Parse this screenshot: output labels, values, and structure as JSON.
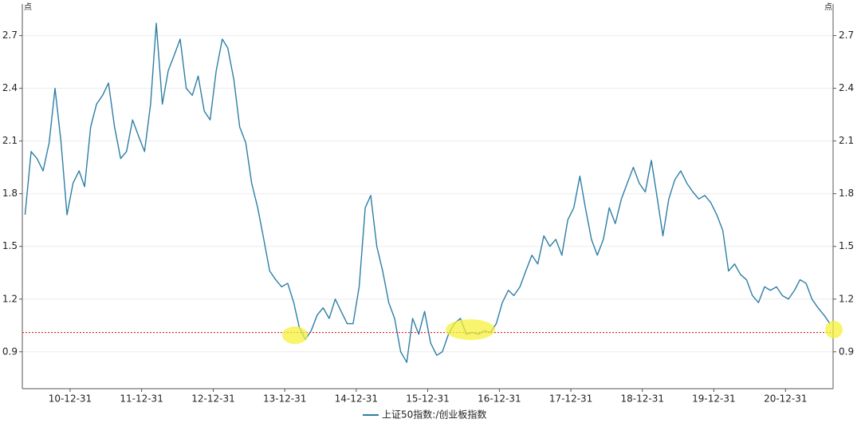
{
  "chart_data": {
    "type": "line",
    "ylabel": "点",
    "y2label": "点",
    "x": [
      "10-05-15",
      "10-06-15",
      "10-07-15",
      "10-08-15",
      "10-09-15",
      "10-10-15",
      "10-11-15",
      "10-12-15",
      "11-01-15",
      "11-02-15",
      "11-03-15",
      "11-04-15",
      "11-05-15",
      "11-06-15",
      "11-07-15",
      "11-08-15",
      "11-09-15",
      "11-10-15",
      "11-11-15",
      "11-12-15",
      "12-01-15",
      "12-02-15",
      "12-03-15",
      "12-04-15",
      "12-05-15",
      "12-06-15",
      "12-07-15",
      "12-08-15",
      "12-09-15",
      "12-10-15",
      "12-11-15",
      "12-12-15",
      "13-01-15",
      "13-02-15",
      "13-03-15",
      "13-04-15",
      "13-05-15",
      "13-06-15",
      "13-07-15",
      "13-08-15",
      "13-09-15",
      "13-10-15",
      "13-11-15",
      "13-12-15",
      "14-01-15",
      "14-02-15",
      "14-03-15",
      "14-04-15",
      "14-05-15",
      "14-06-15",
      "14-07-15",
      "14-08-15",
      "14-09-15",
      "14-10-15",
      "14-11-15",
      "14-12-15",
      "15-01-15",
      "15-02-15",
      "15-03-15",
      "15-04-15",
      "15-05-15",
      "15-06-15",
      "15-07-15",
      "15-08-15",
      "15-09-15",
      "15-10-15",
      "15-11-15",
      "15-12-15",
      "16-01-15",
      "16-02-15",
      "16-03-15",
      "16-04-15",
      "16-05-15",
      "16-06-15",
      "16-07-15",
      "16-08-15",
      "16-09-15",
      "16-10-15",
      "16-11-15",
      "16-12-15",
      "17-01-15",
      "17-02-15",
      "17-03-15",
      "17-04-15",
      "17-05-15",
      "17-06-15",
      "17-07-15",
      "17-08-15",
      "17-09-15",
      "17-10-15",
      "17-11-15",
      "17-12-15",
      "18-01-15",
      "18-02-15",
      "18-03-15",
      "18-04-15",
      "18-05-15",
      "18-06-15",
      "18-07-15",
      "18-08-15",
      "18-09-15",
      "18-10-15",
      "18-11-15",
      "18-12-15",
      "19-01-15",
      "19-02-15",
      "19-03-15",
      "19-04-15",
      "19-05-15",
      "19-06-15",
      "19-07-15",
      "19-08-15",
      "19-09-15",
      "19-10-15",
      "19-11-15",
      "19-12-15",
      "20-01-15",
      "20-02-15",
      "20-03-15",
      "20-04-15",
      "20-05-15",
      "20-06-15",
      "20-07-15",
      "20-08-15",
      "20-09-15",
      "20-10-15",
      "20-11-15",
      "20-12-15",
      "21-01-15",
      "21-02-15",
      "21-03-15",
      "21-04-15",
      "21-05-15",
      "21-06-15",
      "21-07-15",
      "21-08-15"
    ],
    "series": [
      {
        "name": "上证50指数:/创业板指数",
        "color": "#2e7ea6",
        "values": [
          1.68,
          2.04,
          2.0,
          1.93,
          2.09,
          2.4,
          2.09,
          1.68,
          1.86,
          1.93,
          1.84,
          2.18,
          2.31,
          2.36,
          2.43,
          2.18,
          2.0,
          2.04,
          2.22,
          2.13,
          2.04,
          2.31,
          2.77,
          2.31,
          2.5,
          2.59,
          2.68,
          2.4,
          2.36,
          2.47,
          2.27,
          2.22,
          2.5,
          2.68,
          2.63,
          2.45,
          2.18,
          2.09,
          1.86,
          1.72,
          1.54,
          1.36,
          1.31,
          1.27,
          1.29,
          1.18,
          1.04,
          0.97,
          1.02,
          1.11,
          1.15,
          1.09,
          1.2,
          1.13,
          1.06,
          1.06,
          1.27,
          1.72,
          1.79,
          1.5,
          1.36,
          1.18,
          1.09,
          0.9,
          0.84,
          1.09,
          1.0,
          1.13,
          0.95,
          0.88,
          0.9,
          1.0,
          1.06,
          1.09,
          1.0,
          1.01,
          1.0,
          1.02,
          1.01,
          1.06,
          1.18,
          1.25,
          1.22,
          1.27,
          1.36,
          1.45,
          1.4,
          1.56,
          1.5,
          1.54,
          1.45,
          1.65,
          1.72,
          1.9,
          1.72,
          1.54,
          1.45,
          1.54,
          1.72,
          1.63,
          1.77,
          1.86,
          1.95,
          1.86,
          1.81,
          1.99,
          1.79,
          1.56,
          1.77,
          1.88,
          1.93,
          1.86,
          1.81,
          1.77,
          1.79,
          1.75,
          1.68,
          1.59,
          1.36,
          1.4,
          1.34,
          1.31,
          1.22,
          1.18,
          1.27,
          1.25,
          1.27,
          1.22,
          1.2,
          1.25,
          1.31,
          1.29,
          1.2,
          1.15,
          1.11,
          1.06
        ]
      }
    ],
    "xlim": [
      "10-05-01",
      "21-08-31"
    ],
    "xticks": [
      "10-12-31",
      "11-12-31",
      "12-12-31",
      "13-12-31",
      "14-12-31",
      "15-12-31",
      "16-12-31",
      "17-12-31",
      "18-12-31",
      "19-12-31",
      "20-12-31"
    ],
    "ylim": [
      0.69,
      2.88
    ],
    "yticks": [
      0.9,
      1.2,
      1.5,
      1.8,
      2.1,
      2.4,
      2.7
    ],
    "y2lim": [
      0.69,
      2.88
    ],
    "y2ticks": [
      0.9,
      1.2,
      1.5,
      1.8,
      2.1,
      2.4,
      2.7
    ],
    "reference_line": {
      "value": 1.01,
      "color": "#e02020"
    },
    "grid": true,
    "legend": "bottom"
  }
}
